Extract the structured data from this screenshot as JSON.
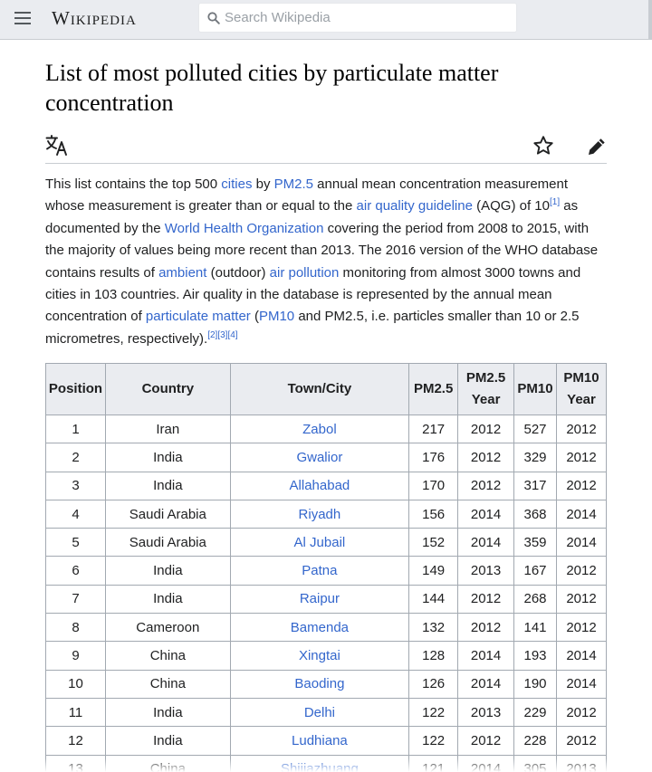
{
  "header": {
    "logo_text": "Wikipedia",
    "search_placeholder": "Search Wikipedia"
  },
  "article": {
    "title": "List of most polluted cities by particulate matter concentration"
  },
  "intro": {
    "t1": "This list contains the top 500 ",
    "link_cities": "cities",
    "t2": " by ",
    "link_pm25": "PM2.5",
    "t3": " annual mean concentration measurement whose measurement is greater than or equal to the ",
    "link_aqg": "air quality guideline",
    "t4": " (AQG) of 10",
    "ref1": "[1]",
    "t5": " as documented by the ",
    "link_who": "World Health Organization",
    "t6": " covering the period from 2008 to 2015, with the majority of values being more recent than 2013. The 2016 version of the WHO database contains results of ",
    "link_ambient": "ambient",
    "t7": " (outdoor) ",
    "link_airpollution": "air pollution",
    "t8": " monitoring from almost 3000 towns and cities in 103 countries. Air quality in the database is represented by the annual mean concentration of ",
    "link_pm": "particulate matter",
    "t9": " (",
    "link_pm10": "PM10",
    "t10": " and PM2.5, i.e. particles smaller than 10 or 2.5 micrometres, respectively).",
    "ref2": "[2]",
    "ref3": "[3]",
    "ref4": "[4]"
  },
  "table": {
    "headers": [
      "Position",
      "Country",
      "Town/City",
      "PM2.5",
      "PM2.5 Year",
      "PM10",
      "PM10 Year"
    ],
    "rows": [
      [
        "1",
        "Iran",
        "Zabol",
        "217",
        "2012",
        "527",
        "2012"
      ],
      [
        "2",
        "India",
        "Gwalior",
        "176",
        "2012",
        "329",
        "2012"
      ],
      [
        "3",
        "India",
        "Allahabad",
        "170",
        "2012",
        "317",
        "2012"
      ],
      [
        "4",
        "Saudi Arabia",
        "Riyadh",
        "156",
        "2014",
        "368",
        "2014"
      ],
      [
        "5",
        "Saudi Arabia",
        "Al Jubail",
        "152",
        "2014",
        "359",
        "2014"
      ],
      [
        "6",
        "India",
        "Patna",
        "149",
        "2013",
        "167",
        "2012"
      ],
      [
        "7",
        "India",
        "Raipur",
        "144",
        "2012",
        "268",
        "2012"
      ],
      [
        "8",
        "Cameroon",
        "Bamenda",
        "132",
        "2012",
        "141",
        "2012"
      ],
      [
        "9",
        "China",
        "Xingtai",
        "128",
        "2014",
        "193",
        "2014"
      ],
      [
        "10",
        "China",
        "Baoding",
        "126",
        "2014",
        "190",
        "2014"
      ],
      [
        "11",
        "India",
        "Delhi",
        "122",
        "2013",
        "229",
        "2012"
      ],
      [
        "12",
        "India",
        "Ludhiana",
        "122",
        "2012",
        "228",
        "2012"
      ],
      [
        "13",
        "China",
        "Shijiazhuang",
        "121",
        "2014",
        "305",
        "2013"
      ]
    ]
  }
}
